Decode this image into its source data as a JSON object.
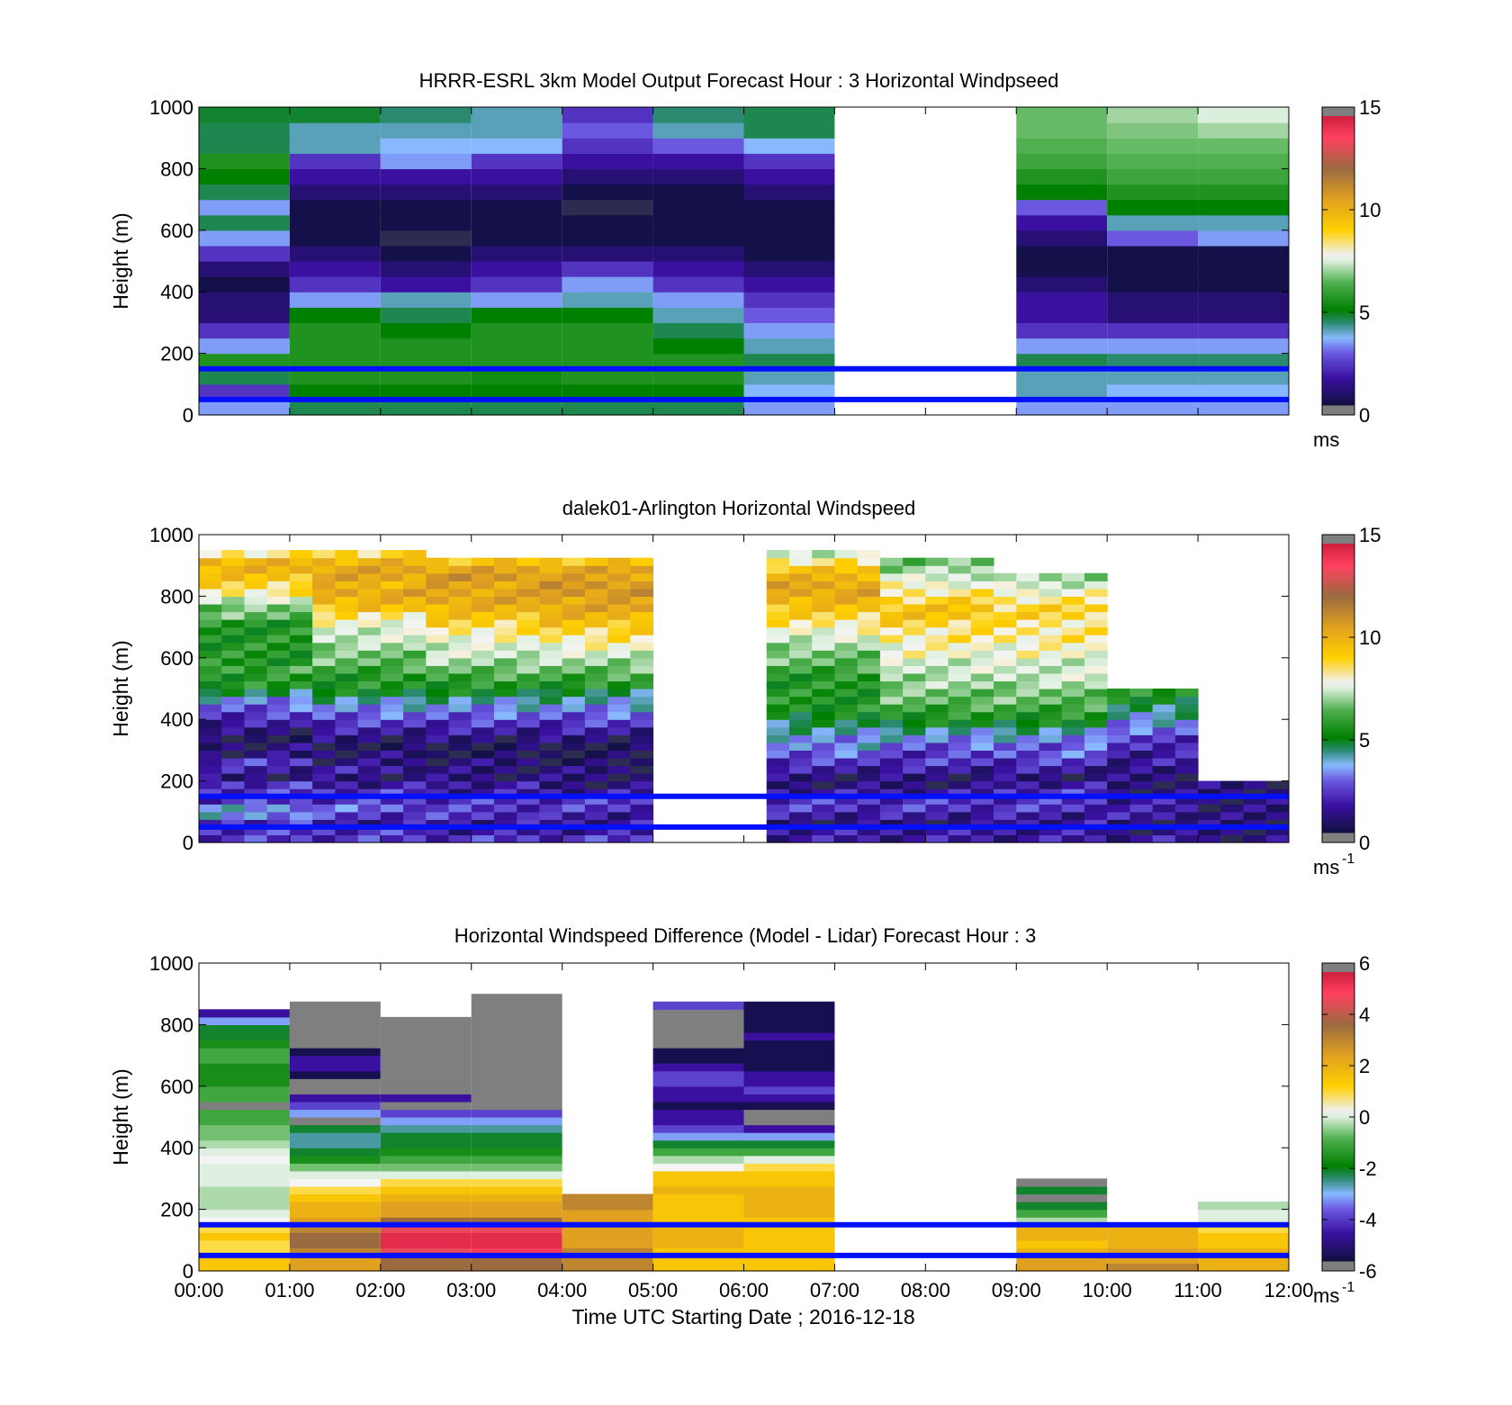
{
  "figure": {
    "time_label": "Time UTC  Starting Date ; 2016-12-18"
  },
  "chart_data": [
    {
      "type": "heatmap",
      "title": "HRRR-ESRL 3km Model Output   Forecast Hour : 3 Horizontal Windpseed",
      "ylabel": "Height (m)",
      "xlabel": "",
      "ylim": [
        0,
        1000
      ],
      "yticks": [
        0,
        200,
        400,
        600,
        800,
        1000
      ],
      "xlim": [
        0,
        12
      ],
      "colorbar": {
        "min": 0,
        "max": 15,
        "ticks": [
          0,
          5,
          10,
          15
        ],
        "unit": "ms",
        "unit_sup": "",
        "palette": "speed"
      },
      "reference_lines_m": [
        50,
        150
      ],
      "columns": [
        {
          "t0": 0,
          "t1": 1,
          "values": [
            3,
            2,
            4,
            5,
            3,
            2,
            1,
            1,
            0.5,
            1,
            2,
            3,
            4,
            3,
            4,
            4.5,
            5,
            4,
            4,
            4.2
          ]
        },
        {
          "t0": 1,
          "t1": 2,
          "values": [
            4,
            4.5,
            5,
            5,
            5,
            5,
            4.5,
            3,
            2,
            1.5,
            1,
            0.5,
            0.5,
            0.5,
            1,
            1.5,
            2,
            3.5,
            3.5,
            4.2
          ]
        },
        {
          "t0": 2,
          "t1": 3,
          "values": [
            4,
            4.5,
            5,
            5,
            5,
            4.5,
            4,
            3.5,
            1.5,
            1,
            0.5,
            0.3,
            0.5,
            0.5,
            1,
            1.5,
            3,
            3.2,
            3.5,
            3.8
          ]
        },
        {
          "t0": 3,
          "t1": 4,
          "values": [
            4,
            4.5,
            4.8,
            5,
            5,
            5,
            4.5,
            3,
            2,
            1.5,
            1,
            0.5,
            0.5,
            0.5,
            1,
            1.5,
            2,
            3.2,
            3.5,
            3.5
          ]
        },
        {
          "t0": 4,
          "t1": 5,
          "values": [
            4,
            4.5,
            5,
            5,
            5,
            5,
            4.5,
            3.5,
            3,
            2,
            1,
            0.5,
            0.5,
            0.3,
            0.5,
            1,
            1.5,
            2,
            2.5,
            2
          ]
        },
        {
          "t0": 5,
          "t1": 6,
          "values": [
            4,
            4.5,
            5,
            5,
            4.5,
            4,
            3.5,
            3,
            2,
            1.5,
            1,
            0.5,
            0.5,
            0.5,
            0.5,
            1,
            1.5,
            2.5,
            3.5,
            3.8
          ]
        },
        {
          "t0": 6,
          "t1": 7,
          "values": [
            3,
            3.2,
            3.5,
            4,
            3.5,
            3,
            2.5,
            2,
            1.5,
            1,
            0.5,
            0.5,
            0.5,
            0.5,
            1,
            1.5,
            2,
            3.2,
            4,
            4
          ]
        },
        {
          "t0": 9,
          "t1": 10,
          "values": [
            3,
            3.5,
            3.5,
            4,
            3,
            2,
            1.5,
            1.5,
            1,
            0.5,
            0.5,
            1,
            1.5,
            2.5,
            4.5,
            5,
            5.5,
            5.8,
            6,
            6
          ]
        },
        {
          "t0": 10,
          "t1": 11,
          "values": [
            3,
            3.2,
            3.5,
            3.8,
            3,
            2,
            1,
            1,
            0.5,
            0.5,
            0.5,
            2.5,
            3.5,
            4.5,
            5,
            5.5,
            5.8,
            6,
            6.2,
            6.5
          ]
        },
        {
          "t0": 11,
          "t1": 12,
          "values": [
            3,
            3.2,
            3.5,
            3.8,
            3,
            2,
            1,
            1,
            0.5,
            0.5,
            0.5,
            3,
            3.5,
            4.5,
            5,
            5.5,
            5.8,
            6,
            6.5,
            7
          ]
        }
      ]
    },
    {
      "type": "heatmap",
      "title": "dalek01-Arlington  Horizontal Windspeed",
      "ylabel": "Height (m)",
      "xlabel": "",
      "ylim": [
        0,
        1000
      ],
      "yticks": [
        0,
        200,
        400,
        600,
        800,
        1000
      ],
      "xlim": [
        0,
        12
      ],
      "colorbar": {
        "min": 0,
        "max": 15,
        "ticks": [
          0,
          5,
          10,
          15
        ],
        "unit": "ms",
        "unit_sup": "-1",
        "palette": "speed"
      },
      "reference_lines_m": [
        50,
        150
      ],
      "slot_hours": 0.25,
      "profiles": [
        {
          "bin_m": 25,
          "values": [
            2,
            2,
            2,
            3,
            3,
            2,
            2,
            2,
            1,
            1.5,
            2,
            1,
            1,
            0.5,
            1,
            1.5,
            2,
            2.5,
            3,
            4,
            5,
            5,
            5.5,
            5,
            5,
            5,
            5,
            5,
            5,
            6,
            6,
            7,
            8,
            8.5,
            9,
            9.5,
            9.5,
            8,
            0,
            0
          ]
        },
        {
          "bin_m": 25,
          "values": [
            2,
            2,
            1.5,
            2,
            2.5,
            2,
            2,
            1.5,
            1,
            1.5,
            1,
            1,
            0.5,
            1,
            1.5,
            2,
            2.5,
            3,
            3.5,
            4.5,
            5,
            5,
            5.5,
            6,
            6,
            6.5,
            7,
            7,
            7.5,
            8,
            9,
            9.5,
            10,
            9.5,
            10,
            10,
            9.5,
            8.5,
            0,
            0
          ]
        },
        {
          "bin_m": 25,
          "values": [
            2,
            1.5,
            1.5,
            2,
            2,
            2,
            1.5,
            1.5,
            1,
            1,
            1,
            0.5,
            0.5,
            1,
            1.5,
            2,
            2.5,
            3,
            3.5,
            4.5,
            5,
            5.5,
            6,
            6.5,
            7,
            7,
            7.5,
            8,
            8.5,
            9,
            9.5,
            10,
            10,
            10,
            10.5,
            10,
            9,
            0,
            0,
            0
          ]
        },
        {
          "bin_m": 25,
          "values": [
            2,
            1.5,
            1.5,
            1.5,
            2,
            2,
            1.5,
            1,
            1,
            1,
            0.5,
            0.5,
            0.5,
            1,
            1.5,
            2,
            2.5,
            3,
            3.5,
            4,
            5,
            5.5,
            6,
            6.5,
            7,
            7.5,
            8,
            8.5,
            9,
            9.5,
            10,
            10,
            10.5,
            10.5,
            10,
            10,
            9,
            0,
            0,
            0
          ]
        },
        {
          "bin_m": 25,
          "values": [
            0,
            0,
            0,
            0,
            0,
            0,
            0,
            0,
            0,
            0,
            0,
            0,
            0,
            0,
            0,
            0,
            0,
            0,
            0,
            0,
            0,
            0,
            0,
            0,
            0,
            0,
            0,
            0,
            0,
            0,
            0,
            0,
            0,
            0,
            0,
            0,
            0,
            0,
            0,
            0
          ]
        },
        {
          "bin_m": 25,
          "values": [
            1.5,
            1.5,
            1,
            1.5,
            2,
            2,
            1.5,
            1,
            1,
            1.5,
            2,
            2.5,
            3,
            3,
            3.5,
            4,
            4.5,
            5,
            5,
            5,
            5,
            5,
            5.5,
            6,
            6,
            6.5,
            7,
            7.5,
            8,
            8.5,
            9,
            9.5,
            10,
            10,
            9.5,
            9,
            8,
            7,
            0,
            0
          ]
        },
        {
          "bin_m": 25,
          "values": [
            1.5,
            1.5,
            1,
            1.5,
            2,
            2,
            1.5,
            1,
            1,
            1.5,
            2,
            2,
            2.5,
            3,
            3.5,
            4.5,
            5,
            5.5,
            6,
            6,
            6.5,
            6.5,
            7,
            7,
            7.5,
            7.5,
            8,
            8,
            8.5,
            9,
            9,
            8.5,
            8,
            7.5,
            7,
            6.5,
            6,
            0,
            0,
            0
          ]
        },
        {
          "bin_m": 25,
          "values": [
            1.5,
            1.5,
            1.5,
            1.5,
            2,
            2,
            2,
            1.5,
            1,
            1.5,
            2,
            2.5,
            2.5,
            3,
            3.5,
            4.5,
            5,
            5.5,
            6,
            6,
            6.5,
            7,
            7,
            7,
            7.5,
            7.5,
            8,
            8,
            8,
            8.5,
            8.5,
            8,
            7.5,
            7,
            6.5,
            0,
            0,
            0,
            0,
            0
          ]
        },
        {
          "bin_m": 25,
          "values": [
            1.5,
            1,
            1,
            1.5,
            1.5,
            1.5,
            1,
            1,
            1,
            1,
            1.5,
            1.5,
            2,
            2,
            2.5,
            3,
            3.5,
            4,
            4.5,
            5,
            0,
            0,
            0,
            0,
            0,
            0,
            0,
            0,
            0,
            0,
            0,
            0,
            0,
            0,
            0,
            0,
            0,
            0,
            0,
            0
          ]
        },
        {
          "bin_m": 25,
          "values": [
            1,
            1,
            1,
            1,
            1,
            1,
            1,
            1,
            0,
            0,
            0,
            0,
            0,
            0,
            0,
            0,
            0,
            0,
            0,
            0,
            0,
            0,
            0,
            0,
            0,
            0,
            0,
            0,
            0,
            0,
            0,
            0,
            0,
            0,
            0,
            0,
            0,
            0,
            0,
            0
          ]
        }
      ]
    },
    {
      "type": "heatmap",
      "title": "Horizontal Windspeed Difference (Model - Lidar) Forecast Hour : 3",
      "ylabel": "Height (m)",
      "xlabel": "",
      "ylim": [
        0,
        1000
      ],
      "yticks": [
        0,
        200,
        400,
        600,
        800,
        1000
      ],
      "xlim": [
        0,
        12
      ],
      "xticks": [
        "00:00",
        "01:00",
        "02:00",
        "03:00",
        "04:00",
        "05:00",
        "06:00",
        "07:00",
        "08:00",
        "09:00",
        "10:00",
        "11:00",
        "12:00"
      ],
      "colorbar": {
        "min": -6,
        "max": 6,
        "ticks": [
          -6,
          -4,
          -2,
          0,
          2,
          4,
          6
        ],
        "unit": "ms",
        "unit_sup": "-1",
        "palette": "diff"
      },
      "reference_lines_m": [
        50,
        150
      ],
      "columns": [
        {
          "t0": 0,
          "t1": 1,
          "top_m": 820,
          "bin_m": 25,
          "values": [
            1,
            1,
            0.5,
            0.5,
            1,
            0.5,
            0,
            -0.5,
            -1,
            -1,
            -1,
            -0.5,
            -0.5,
            -0.5,
            0,
            -0.5,
            -1,
            -1.5,
            -1.5,
            -2,
            -2,
            -9,
            -2,
            -2,
            -2.5,
            -2.5,
            -2.5,
            -2,
            -2,
            -2.5,
            -3,
            -3,
            -4,
            -5
          ]
        },
        {
          "t0": 1,
          "t1": 2,
          "top_m": 870,
          "bin_m": 25,
          "values": [
            2,
            2,
            2.5,
            3,
            3,
            2.5,
            2,
            1.5,
            1.5,
            1,
            0.5,
            0,
            -0.5,
            -1.5,
            -2.5,
            -3,
            -3.5,
            -3.5,
            -3,
            -9,
            -4,
            -4.5,
            -5,
            -6,
            -6,
            -5.5,
            -5,
            -5,
            -5.5,
            -6,
            -6,
            -7,
            -7,
            -7,
            -7
          ]
        },
        {
          "t0": 2,
          "t1": 3,
          "top_m": 810,
          "bin_m": 25,
          "values": [
            3,
            3,
            4,
            5,
            5,
            4,
            3,
            2,
            2,
            1.5,
            1,
            0.5,
            -0.5,
            -1.5,
            -2,
            -2.5,
            -3,
            -3,
            -3.5,
            -4,
            -4.5,
            -6,
            -5,
            -7,
            -6,
            -7,
            -7,
            -7,
            -7,
            -7,
            -7,
            -7,
            -7
          ]
        },
        {
          "t0": 3,
          "t1": 4,
          "top_m": 880,
          "bin_m": 25,
          "values": [
            3,
            3,
            4.5,
            5,
            5,
            4,
            3,
            2,
            2,
            1.5,
            1,
            0.5,
            -0.5,
            -1.5,
            -2,
            -2.5,
            -3,
            -3,
            -3.5,
            -4,
            -4.5,
            -6,
            -7,
            -7,
            -6,
            -6,
            -6,
            -7,
            -7,
            -7,
            -7,
            -7,
            -7,
            -7,
            -7,
            -7
          ]
        },
        {
          "t0": 4,
          "t1": 5,
          "top_m": 250,
          "bin_m": 25,
          "values": [
            2.5,
            2.5,
            2.5,
            2,
            2,
            2,
            2,
            2,
            2.5,
            2.5
          ]
        },
        {
          "t0": 5,
          "t1": 6,
          "top_m": 870,
          "bin_m": 25,
          "values": [
            1,
            1,
            1,
            1.5,
            1.5,
            1.5,
            1,
            1,
            1,
            1,
            1.5,
            1,
            1,
            0,
            -1,
            -2,
            -3,
            -4,
            -4.5,
            -5,
            -5,
            -5.5,
            -5,
            -5,
            -4.5,
            -4.5,
            -5,
            -5.5,
            -5.5,
            -6,
            -7,
            -7,
            -7,
            -7,
            -4.5
          ]
        },
        {
          "t0": 6,
          "t1": 7,
          "top_m": 870,
          "bin_m": 25,
          "values": [
            1,
            1,
            1,
            1,
            1,
            1,
            1,
            1.5,
            1.5,
            1.5,
            1.5,
            1,
            1,
            0.5,
            -0.5,
            -2,
            -3,
            -4,
            -5,
            -6,
            -7,
            -5.5,
            -5,
            -4.5,
            -5,
            -5,
            -5.5,
            -5.5,
            -5.5,
            -5.5,
            -5,
            -5.5,
            -5.5,
            -5.5,
            -5.5
          ]
        },
        {
          "t0": 9,
          "t1": 10,
          "top_m": 300,
          "bin_m": 25,
          "values": [
            2,
            2,
            1.5,
            1,
            1.5,
            1.5,
            -1,
            -2,
            -3,
            -9,
            -3,
            -9
          ]
        },
        {
          "t0": 10,
          "t1": 11,
          "top_m": 150,
          "bin_m": 25,
          "values": [
            2.5,
            2,
            2,
            1.5,
            1.5,
            1.5
          ]
        },
        {
          "t0": 11,
          "t1": 12,
          "top_m": 220,
          "bin_m": 25,
          "values": [
            1.5,
            1.5,
            1.5,
            1,
            1,
            0.5,
            -0.5,
            -0.5,
            -1
          ]
        }
      ]
    }
  ]
}
